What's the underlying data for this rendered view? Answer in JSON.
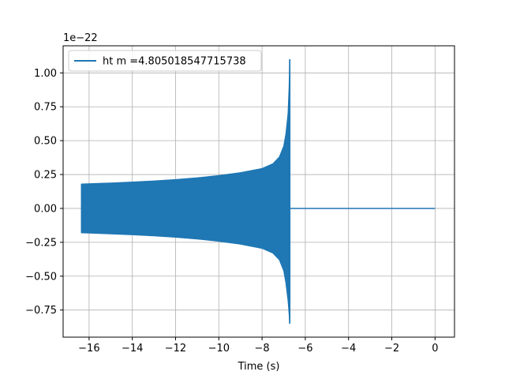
{
  "chart_data": {
    "type": "line",
    "title": "",
    "xlabel": "Time (s)",
    "ylabel": "",
    "y_scale_label": "1e−22",
    "xlim": [
      -17.2,
      0.9
    ],
    "ylim": [
      -0.95,
      1.2
    ],
    "x_ticks": [
      -16,
      -14,
      -12,
      -10,
      -8,
      -6,
      -4,
      -2,
      0
    ],
    "x_tick_labels": [
      "−16",
      "−14",
      "−12",
      "−10",
      "−8",
      "−6",
      "−4",
      "−2",
      "0"
    ],
    "y_ticks": [
      -0.75,
      -0.5,
      -0.25,
      0.0,
      0.25,
      0.5,
      0.75,
      1.0
    ],
    "y_tick_labels": [
      "−0.75",
      "−0.50",
      "−0.25",
      "0.00",
      "0.25",
      "0.50",
      "0.75",
      "1.00"
    ],
    "grid": true,
    "legend_position": "top-left",
    "color": "#1f77b4",
    "series": [
      {
        "name": "ht m =4.805018547715738",
        "description_envelope": {
          "t_start": -16.35,
          "t_merger": -6.72,
          "t_end": 0.0,
          "upper": [
            [
              -16.35,
              0.18
            ],
            [
              -15.0,
              0.188
            ],
            [
              -14.0,
              0.195
            ],
            [
              -13.0,
              0.203
            ],
            [
              -12.0,
              0.213
            ],
            [
              -11.0,
              0.226
            ],
            [
              -10.0,
              0.243
            ],
            [
              -9.0,
              0.264
            ],
            [
              -8.0,
              0.295
            ],
            [
              -7.5,
              0.33
            ],
            [
              -7.2,
              0.38
            ],
            [
              -7.0,
              0.46
            ],
            [
              -6.9,
              0.55
            ],
            [
              -6.8,
              0.7
            ],
            [
              -6.75,
              0.9
            ],
            [
              -6.72,
              1.1
            ]
          ],
          "lower": [
            [
              -16.35,
              -0.18
            ],
            [
              -15.0,
              -0.188
            ],
            [
              -14.0,
              -0.195
            ],
            [
              -13.0,
              -0.203
            ],
            [
              -12.0,
              -0.213
            ],
            [
              -11.0,
              -0.226
            ],
            [
              -10.0,
              -0.243
            ],
            [
              -9.0,
              -0.264
            ],
            [
              -8.0,
              -0.295
            ],
            [
              -7.5,
              -0.33
            ],
            [
              -7.2,
              -0.38
            ],
            [
              -7.0,
              -0.46
            ],
            [
              -6.9,
              -0.55
            ],
            [
              -6.8,
              -0.68
            ],
            [
              -6.75,
              -0.78
            ],
            [
              -6.72,
              -0.85
            ]
          ]
        }
      }
    ]
  }
}
